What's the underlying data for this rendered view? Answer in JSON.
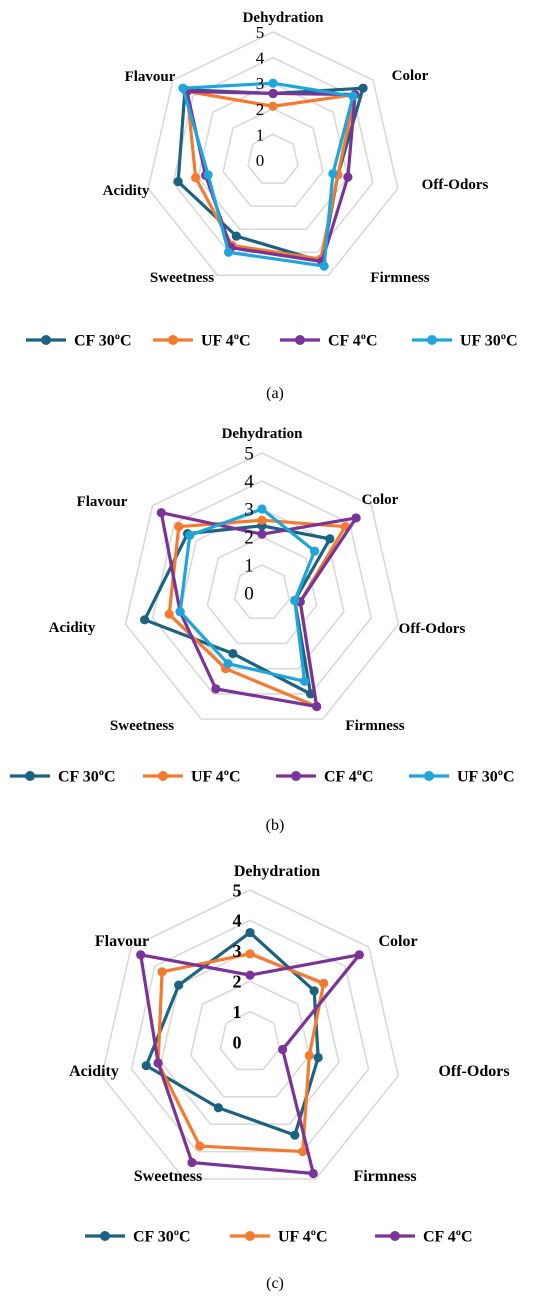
{
  "figure_colors": {
    "CF 30ºC": "#1b6381",
    "UF 4ºC": "#f47a30",
    "CF 4ºC": "#7a3396",
    "UF 30ºC": "#1fa5d9",
    "grid": "#d9d9d9"
  },
  "chart_data": [
    {
      "type": "radar",
      "caption": "(a)",
      "axes": [
        "Dehydration",
        "Color",
        "Off-Odors",
        "Firmness",
        "Sweetness",
        "Acidity",
        "Flavour"
      ],
      "ticks": [
        "0",
        "1",
        "2",
        "3",
        "4",
        "5"
      ],
      "rlim": [
        0,
        5
      ],
      "grid": true,
      "tick_bold": false,
      "legend_position": "bottom",
      "series": [
        {
          "name": "CF 30ºC",
          "color": "#1b6381",
          "values": [
            2.6,
            4.5,
            2.6,
            4.4,
            3.3,
            3.8,
            4.4
          ]
        },
        {
          "name": "UF 4ºC",
          "color": "#f47a30",
          "values": [
            2.1,
            4.1,
            2.6,
            4.3,
            3.7,
            3.1,
            4.3
          ]
        },
        {
          "name": "CF 4ºC",
          "color": "#7a3396",
          "values": [
            2.6,
            4.1,
            3.0,
            4.4,
            3.8,
            2.7,
            4.3
          ]
        },
        {
          "name": "UF 30ºC",
          "color": "#1fa5d9",
          "values": [
            3.0,
            4.0,
            2.4,
            4.6,
            4.0,
            2.6,
            4.5
          ]
        }
      ]
    },
    {
      "type": "radar",
      "caption": "(b)",
      "axes": [
        "Dehydration",
        "Color",
        "Off-Odors",
        "Firmness",
        "Sweetness",
        "Acidity",
        "Flavour"
      ],
      "ticks": [
        "0",
        "1",
        "2",
        "3",
        "4",
        "5"
      ],
      "rlim": [
        0,
        5
      ],
      "grid": true,
      "tick_bold": false,
      "legend_position": "bottom",
      "series": [
        {
          "name": "CF 30ºC",
          "color": "#1b6381",
          "values": [
            2.4,
            3.1,
            1.2,
            4.0,
            2.4,
            4.3,
            3.4
          ]
        },
        {
          "name": "UF 4ºC",
          "color": "#f47a30",
          "values": [
            2.6,
            3.8,
            1.4,
            4.5,
            3.0,
            3.4,
            3.8
          ]
        },
        {
          "name": "CF 4ºC",
          "color": "#7a3396",
          "values": [
            2.1,
            4.3,
            1.4,
            4.5,
            3.8,
            3.0,
            4.6
          ]
        },
        {
          "name": "UF 30ºC",
          "color": "#1fa5d9",
          "values": [
            3.0,
            2.4,
            1.2,
            3.5,
            2.8,
            3.0,
            3.3
          ]
        }
      ]
    },
    {
      "type": "radar",
      "caption": "(c)",
      "axes": [
        "Dehydration",
        "Color",
        "Off-Odors",
        "Firmness",
        "Sweetness",
        "Acidity",
        "Flavour"
      ],
      "ticks": [
        "0",
        "1",
        "2",
        "3",
        "4",
        "5"
      ],
      "rlim": [
        0,
        5
      ],
      "grid": true,
      "tick_bold": true,
      "legend_position": "bottom",
      "series": [
        {
          "name": "CF 30ºC",
          "color": "#1b6381",
          "values": [
            3.6,
            2.7,
            2.3,
            3.4,
            2.4,
            3.5,
            3.0
          ]
        },
        {
          "name": "UF 4ºC",
          "color": "#f47a30",
          "values": [
            2.9,
            3.1,
            2.0,
            4.0,
            3.8,
            3.1,
            3.7
          ]
        },
        {
          "name": "CF 4ºC",
          "color": "#7a3396",
          "values": [
            2.2,
            4.6,
            1.1,
            4.8,
            4.4,
            3.1,
            4.6
          ]
        }
      ]
    }
  ]
}
